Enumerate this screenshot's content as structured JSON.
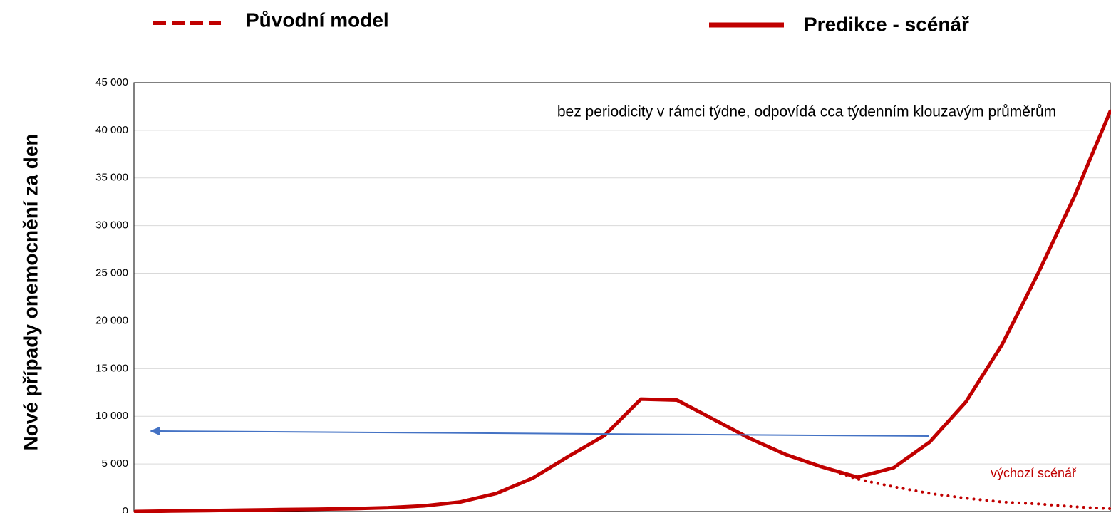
{
  "chart_data": {
    "type": "line",
    "ylabel": "Nové případy onemocnění za den",
    "annotations": [
      "bez periodicity v rámci týdne, odpovídá cca týdenním klouzavým průměrům",
      "výchozí scénář"
    ],
    "categories": [
      null,
      null,
      null,
      null,
      null,
      null,
      null,
      null,
      null,
      null,
      null,
      null,
      null,
      null,
      null,
      null,
      null,
      null,
      null,
      null,
      null,
      null,
      null,
      null,
      null,
      null,
      null,
      null
    ],
    "series": [
      {
        "name": "Původní model",
        "color": "#c00000",
        "style": "dotted",
        "values": [
          0,
          50,
          100,
          150,
          200,
          250,
          300,
          400,
          600,
          1000,
          1900,
          3500,
          5800,
          8000,
          11800,
          11700,
          9700,
          7700,
          6000,
          4700,
          3400,
          2600,
          1900,
          1400,
          1000,
          800,
          500,
          300
        ]
      },
      {
        "name": "Predikce - scénář",
        "color": "#c00000",
        "style": "solid",
        "values": [
          0,
          50,
          100,
          150,
          200,
          250,
          300,
          400,
          600,
          1000,
          1900,
          3500,
          5800,
          8000,
          11800,
          11700,
          9700,
          7700,
          6000,
          4700,
          3600,
          4600,
          7300,
          11500,
          17500,
          25000,
          33000,
          42000
        ]
      }
    ],
    "ylim": [
      0,
      45000
    ],
    "yticks": [
      0,
      {
        "value": 5000,
        "label": "5 000"
      },
      {
        "value": 10000,
        "label": "10 000"
      },
      {
        "value": 15000,
        "label": "15 000"
      },
      {
        "value": 20000,
        "label": "20 000"
      },
      {
        "value": 25000,
        "label": "25 000"
      },
      {
        "value": 30000,
        "label": "30 000"
      },
      {
        "value": 35000,
        "label": "35 000"
      },
      {
        "value": 40000,
        "label": "40 000"
      },
      {
        "value": 45000,
        "label": "45 000"
      }
    ],
    "grid": true
  }
}
